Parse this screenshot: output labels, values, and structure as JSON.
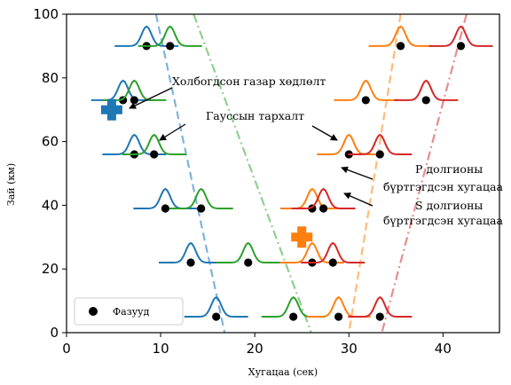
{
  "chart_data": {
    "type": "scatter",
    "xlabel": "Хугацаа (сек)",
    "ylabel": "Зай (км)",
    "xlim": [
      0,
      46
    ],
    "ylim": [
      0,
      100
    ],
    "xticks": [
      "0",
      "10",
      "20",
      "30",
      "40"
    ],
    "yticks": [
      "0",
      "20",
      "40",
      "60",
      "80",
      "100"
    ],
    "grid": false,
    "legend": {
      "location": "bottom-left",
      "label": "Фазууд"
    },
    "colors": {
      "p_near": "#1f77b4",
      "s_near": "#2ca02c",
      "p_far": "#ff7f0e",
      "s_far": "#d62728",
      "p_near_line": "#7fb3d9",
      "s_near_line": "#8fd08f",
      "p_far_line": "#ffbb78",
      "s_far_line": "#e58e8e"
    },
    "epicenters": [
      {
        "name": "",
        "x": 4.8,
        "y": 70,
        "color": "#1f77b4"
      },
      {
        "name": "",
        "x": 25,
        "y": 30,
        "color": "#ff7f0e"
      }
    ],
    "lines": [
      {
        "color": "#7fb3d9",
        "style": "dashed",
        "points": [
          [
            9.5,
            100
          ],
          [
            16.8,
            0
          ]
        ]
      },
      {
        "color": "#8fd08f",
        "style": "dashdot",
        "points": [
          [
            13.5,
            100
          ],
          [
            26,
            0
          ]
        ]
      },
      {
        "color": "#ffbb78",
        "style": "dashed",
        "points": [
          [
            35.5,
            100
          ],
          [
            30,
            0
          ]
        ]
      },
      {
        "color": "#e58e8e",
        "style": "dashdot",
        "points": [
          [
            42.5,
            100
          ],
          [
            33.5,
            0
          ]
        ]
      }
    ],
    "phase_picks": [
      {
        "x": 8.5,
        "y": 90,
        "color": "#1f77b4"
      },
      {
        "x": 11,
        "y": 90,
        "color": "#2ca02c"
      },
      {
        "x": 6,
        "y": 73,
        "color": "#1f77b4"
      },
      {
        "x": 7.2,
        "y": 73,
        "color": "#2ca02c"
      },
      {
        "x": 7.2,
        "y": 56,
        "color": "#1f77b4"
      },
      {
        "x": 9.3,
        "y": 56,
        "color": "#2ca02c"
      },
      {
        "x": 10.5,
        "y": 39,
        "color": "#1f77b4"
      },
      {
        "x": 14.3,
        "y": 39,
        "color": "#2ca02c"
      },
      {
        "x": 13.2,
        "y": 22,
        "color": "#1f77b4"
      },
      {
        "x": 19.3,
        "y": 22,
        "color": "#2ca02c"
      },
      {
        "x": 15.9,
        "y": 5,
        "color": "#1f77b4"
      },
      {
        "x": 24.1,
        "y": 5,
        "color": "#2ca02c"
      },
      {
        "x": 35.5,
        "y": 90,
        "color": "#ff7f0e"
      },
      {
        "x": 41.9,
        "y": 90,
        "color": "#d62728"
      },
      {
        "x": 31.8,
        "y": 73,
        "color": "#ff7f0e"
      },
      {
        "x": 38.2,
        "y": 73,
        "color": "#d62728"
      },
      {
        "x": 30,
        "y": 56,
        "color": "#ff7f0e"
      },
      {
        "x": 33.3,
        "y": 56,
        "color": "#d62728"
      },
      {
        "x": 26.1,
        "y": 39,
        "color": "#ff7f0e"
      },
      {
        "x": 27.3,
        "y": 39,
        "color": "#d62728"
      },
      {
        "x": 26.1,
        "y": 22,
        "color": "#ff7f0e"
      },
      {
        "x": 28.3,
        "y": 22,
        "color": "#d62728"
      },
      {
        "x": 28.9,
        "y": 5,
        "color": "#ff7f0e"
      },
      {
        "x": 33.3,
        "y": 5,
        "color": "#d62728"
      }
    ],
    "annotations": [
      {
        "text": "Холбогдсон газар хөдлөлт"
      },
      {
        "text": "Гауссын тархалт"
      },
      {
        "text": "P долгионы"
      },
      {
        "text": "бүртгэгдсэн хугацаа"
      },
      {
        "text": "S долгионы"
      },
      {
        "text": "бүртгэгдсэн хугацаа"
      }
    ]
  }
}
